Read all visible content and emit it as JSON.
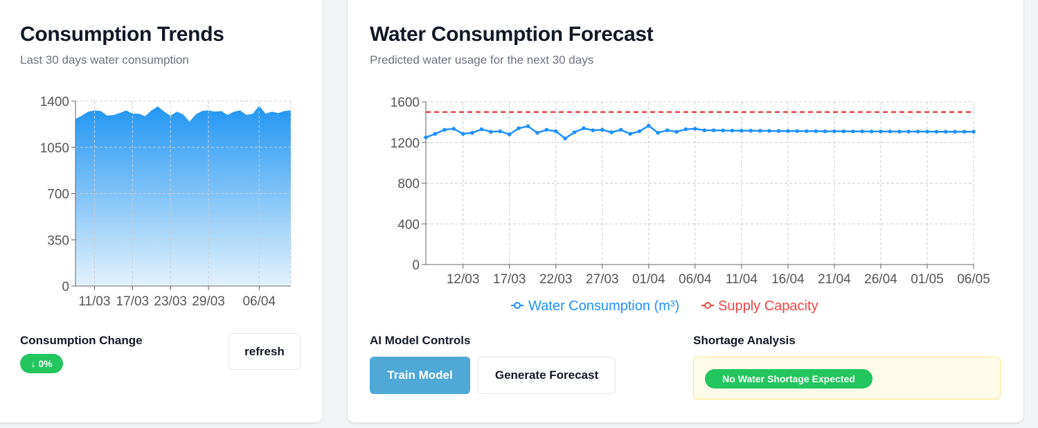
{
  "trends": {
    "title": "Consumption Trends",
    "subtitle": "Last 30 days water consumption",
    "change_label": "Consumption Change",
    "change_badge": "↓ 0%",
    "refresh_label": "refresh"
  },
  "forecast": {
    "title": "Water Consumption Forecast",
    "subtitle": "Predicted water usage for the next 30 days",
    "controls_label": "AI Model Controls",
    "train_label": "Train Model",
    "generate_label": "Generate Forecast",
    "shortage_label": "Shortage Analysis",
    "shortage_status": "No Water Shortage Expected"
  },
  "colors": {
    "accent_blue": "#1e90ff",
    "supply_red": "#ef4444",
    "success_green": "#22c55e",
    "primary_button": "#4fa8d6"
  },
  "chart_data": [
    {
      "type": "area",
      "x_start": "08/03",
      "x_ticks": [
        "11/03",
        "17/03",
        "23/03",
        "29/03",
        "06/04"
      ],
      "y_ticks": [
        "0",
        "350",
        "700",
        "1050",
        "1400"
      ],
      "ylim": [
        0,
        1400
      ],
      "values": [
        1265,
        1290,
        1320,
        1330,
        1325,
        1290,
        1295,
        1310,
        1330,
        1305,
        1305,
        1285,
        1330,
        1360,
        1320,
        1290,
        1320,
        1300,
        1245,
        1300,
        1325,
        1330,
        1320,
        1325,
        1295,
        1320,
        1330,
        1295,
        1305,
        1365,
        1305,
        1320,
        1310,
        1325,
        1330
      ],
      "grid": true
    },
    {
      "type": "line",
      "x_start": "08/03",
      "x_ticks": [
        "12/03",
        "17/03",
        "22/03",
        "27/03",
        "01/04",
        "06/04",
        "11/04",
        "16/04",
        "21/04",
        "26/04",
        "01/05",
        "06/05"
      ],
      "y_ticks": [
        "0",
        "400",
        "800",
        "1200",
        "1600"
      ],
      "ylim": [
        0,
        1600
      ],
      "series": [
        {
          "name": "Water Consumption (m³)",
          "values": [
            1250,
            1285,
            1325,
            1335,
            1285,
            1295,
            1330,
            1305,
            1310,
            1280,
            1340,
            1360,
            1295,
            1325,
            1310,
            1240,
            1300,
            1340,
            1320,
            1325,
            1300,
            1325,
            1285,
            1310,
            1365,
            1295,
            1320,
            1305,
            1330,
            1335,
            1320,
            1320,
            1318,
            1317,
            1316,
            1316,
            1315,
            1314,
            1313,
            1313,
            1312,
            1311,
            1311,
            1310,
            1310,
            1310,
            1309,
            1309,
            1308,
            1308,
            1308,
            1307,
            1307,
            1307,
            1307,
            1306,
            1306,
            1306,
            1306,
            1306
          ]
        },
        {
          "name": "Supply Capacity",
          "value": 1500
        }
      ],
      "grid": true,
      "legend": "bottom"
    }
  ]
}
